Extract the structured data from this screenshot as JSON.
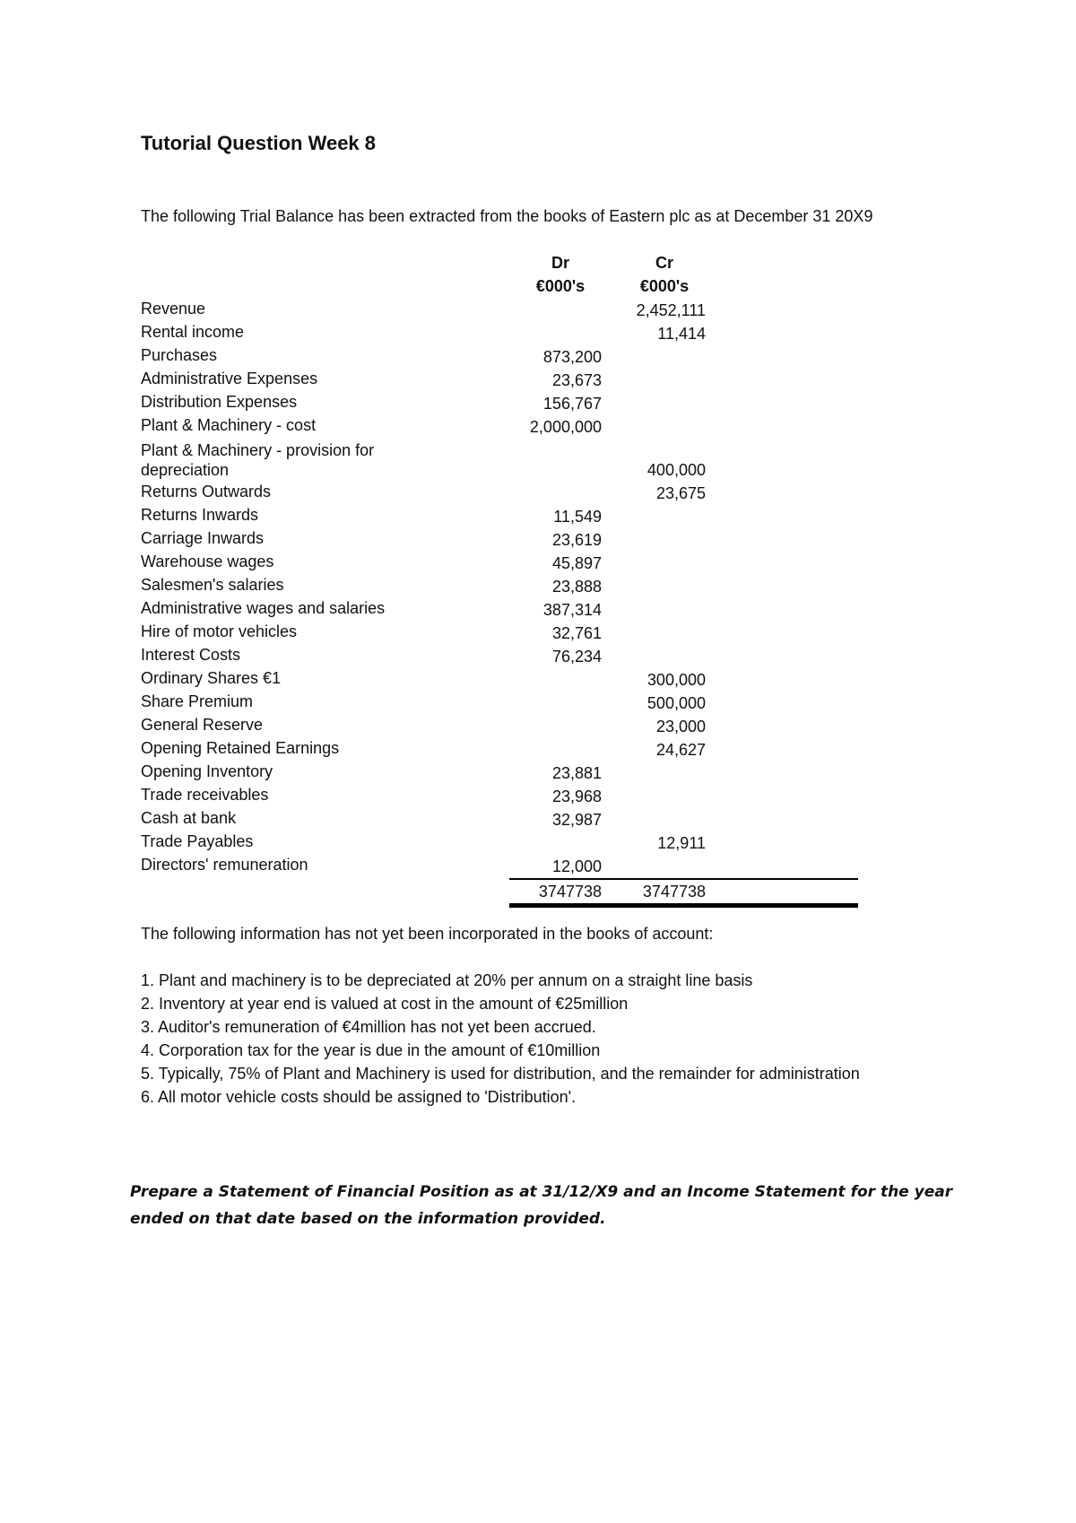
{
  "title": "Tutorial Question Week 8",
  "intro": "The following Trial Balance has been extracted from the books of Eastern plc as at December 31 20X9",
  "table": {
    "headers": {
      "dr": "Dr",
      "cr": "Cr",
      "dr_unit": "€000's",
      "cr_unit": "€000's"
    },
    "rows": [
      {
        "label": "Revenue",
        "dr": "",
        "cr": "2,452,111"
      },
      {
        "label": "Rental income",
        "dr": "",
        "cr": "11,414"
      },
      {
        "label": "Purchases",
        "dr": "873,200",
        "cr": ""
      },
      {
        "label": "Administrative Expenses",
        "dr": "23,673",
        "cr": ""
      },
      {
        "label": "Distribution Expenses",
        "dr": "156,767",
        "cr": ""
      },
      {
        "label": "Plant & Machinery - cost",
        "dr": "2,000,000",
        "cr": ""
      },
      {
        "label": "Plant & Machinery - provision for depreciation",
        "dr": "",
        "cr": "400,000"
      },
      {
        "label": "Returns Outwards",
        "dr": "",
        "cr": "23,675"
      },
      {
        "label": "Returns Inwards",
        "dr": "11,549",
        "cr": ""
      },
      {
        "label": "Carriage Inwards",
        "dr": "23,619",
        "cr": ""
      },
      {
        "label": "Warehouse wages",
        "dr": "45,897",
        "cr": ""
      },
      {
        "label": "Salesmen's salaries",
        "dr": "23,888",
        "cr": ""
      },
      {
        "label": "Administrative wages and salaries",
        "dr": "387,314",
        "cr": ""
      },
      {
        "label": "Hire of motor vehicles",
        "dr": "32,761",
        "cr": ""
      },
      {
        "label": "Interest Costs",
        "dr": "76,234",
        "cr": ""
      },
      {
        "label": "Ordinary Shares €1",
        "dr": "",
        "cr": "300,000"
      },
      {
        "label": "Share Premium",
        "dr": "",
        "cr": "500,000"
      },
      {
        "label": "General Reserve",
        "dr": "",
        "cr": "23,000"
      },
      {
        "label": "Opening Retained Earnings",
        "dr": "",
        "cr": "24,627"
      },
      {
        "label": "Opening Inventory",
        "dr": "23,881",
        "cr": ""
      },
      {
        "label": "Trade receivables",
        "dr": "23,968",
        "cr": ""
      },
      {
        "label": "Cash at bank",
        "dr": "32,987",
        "cr": ""
      },
      {
        "label": "Trade Payables",
        "dr": "",
        "cr": "12,911"
      },
      {
        "label": "Directors' remuneration",
        "dr": "12,000",
        "cr": ""
      }
    ],
    "totals": {
      "dr": "3747738",
      "cr": "3747738"
    }
  },
  "info_heading": "The following information has not yet been incorporated in the books of account:",
  "notes": [
    "1. Plant and machinery is to be depreciated at 20% per annum on a straight line basis",
    "2. Inventory at year end is valued at cost in the amount of €25million",
    "3. Auditor's remuneration of €4million has not yet been accrued.",
    "4. Corporation tax for the year is due in the amount of €10million",
    "5. Typically, 75% of Plant and Machinery is used for distribution, and the remainder for administration",
    "6. All motor vehicle costs should be assigned to 'Distribution'."
  ],
  "task": "Prepare a Statement of Financial Position as at 31/12/X9 and an Income Statement for the year ended on that date based on the information provided."
}
